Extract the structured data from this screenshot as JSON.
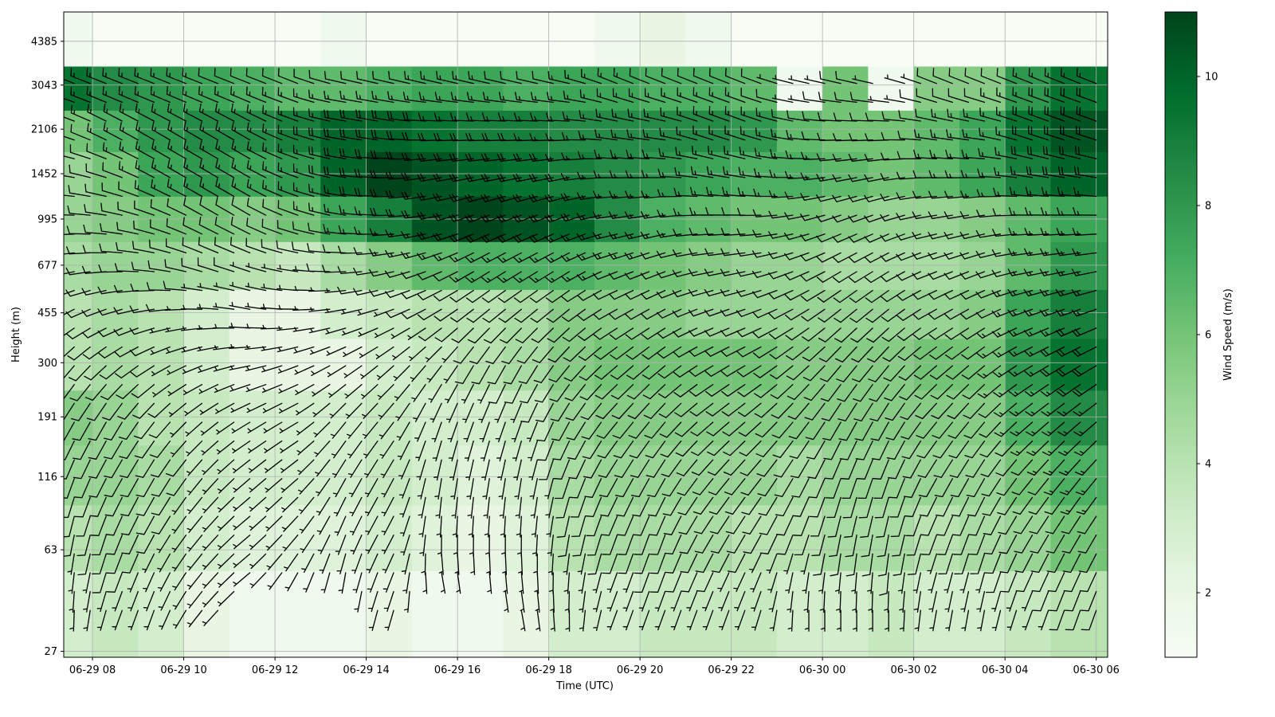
{
  "chart_data": {
    "type": "heatmap",
    "subtype": "wind-barb time-height section",
    "title": "",
    "xlabel": "Time (UTC)",
    "ylabel": "Height (m)",
    "colorbar": {
      "label": "Wind Speed (m/s)",
      "colormap": "Greens",
      "range": [
        1.0,
        11.0
      ],
      "ticks": [
        "2",
        "4",
        "6",
        "8",
        "10"
      ],
      "tick_values": [
        2,
        4,
        6,
        8,
        10
      ]
    },
    "x_ticks": [
      "06-29 08",
      "06-29 10",
      "06-29 12",
      "06-29 14",
      "06-29 16",
      "06-29 18",
      "06-29 20",
      "06-29 22",
      "06-30 00",
      "06-30 02",
      "06-30 04",
      "06-30 06"
    ],
    "x_range": [
      "06-29 07:22",
      "06-30 06:15"
    ],
    "y_ticks": [
      "27",
      "63",
      "116",
      "191",
      "300",
      "455",
      "677",
      "995",
      "1452",
      "2106",
      "3043",
      "4385"
    ],
    "y_scale": "logarithmic, height (m)",
    "grid": true,
    "time_hours": [
      7.5,
      8.5,
      9.5,
      10.5,
      11.5,
      12.5,
      13.5,
      14.5,
      15.5,
      16.5,
      17.5,
      18.5,
      19.5,
      20.5,
      21.5,
      22.5,
      23.5,
      24.5,
      25.5,
      26.5,
      27.5,
      28.5,
      29.5
    ],
    "heights_m": [
      40,
      70,
      120,
      190,
      300,
      450,
      680,
      1000,
      1450,
      2100,
      2900,
      4385
    ],
    "wind_speed": [
      [
        3.0,
        3.5,
        3.0,
        2.0,
        1.5,
        1.5,
        1.5,
        2.0,
        1.5,
        1.5,
        2.0,
        3.0,
        3.0,
        3.5,
        3.5,
        3.5,
        3.0,
        3.0,
        3.5,
        3.0,
        3.0,
        3.5,
        4.0
      ],
      [
        4.0,
        4.5,
        4.0,
        3.0,
        2.5,
        2.5,
        2.5,
        3.0,
        2.5,
        2.0,
        2.5,
        4.0,
        4.5,
        4.5,
        4.5,
        4.0,
        4.0,
        4.5,
        4.5,
        4.0,
        4.5,
        5.0,
        6.0
      ],
      [
        5.0,
        5.0,
        4.5,
        3.5,
        3.0,
        3.0,
        3.0,
        3.5,
        3.0,
        2.5,
        3.0,
        4.5,
        5.0,
        5.0,
        5.0,
        5.0,
        4.5,
        5.0,
        5.0,
        5.0,
        5.0,
        6.0,
        7.0
      ],
      [
        5.5,
        5.0,
        4.0,
        3.5,
        3.0,
        3.0,
        3.0,
        3.5,
        3.0,
        3.0,
        3.5,
        5.0,
        5.5,
        5.5,
        5.5,
        5.5,
        5.5,
        5.5,
        5.5,
        5.5,
        5.5,
        7.0,
        8.5
      ],
      [
        4.0,
        4.5,
        4.0,
        3.0,
        2.0,
        2.0,
        2.0,
        3.0,
        3.5,
        4.0,
        4.5,
        5.5,
        6.0,
        6.0,
        6.0,
        6.0,
        5.5,
        5.5,
        5.5,
        6.0,
        6.0,
        8.0,
        9.5
      ],
      [
        4.0,
        4.5,
        4.0,
        3.0,
        2.0,
        2.0,
        3.0,
        3.5,
        4.0,
        4.0,
        4.5,
        5.5,
        5.5,
        5.5,
        5.0,
        5.0,
        5.0,
        5.0,
        5.0,
        5.0,
        5.5,
        7.5,
        9.0
      ],
      [
        4.5,
        5.0,
        5.0,
        4.5,
        4.0,
        3.5,
        4.5,
        5.5,
        6.5,
        7.0,
        7.0,
        7.0,
        6.5,
        6.0,
        5.5,
        5.0,
        5.0,
        4.5,
        4.5,
        4.5,
        5.0,
        6.5,
        8.0
      ],
      [
        5.0,
        5.5,
        6.0,
        6.0,
        5.5,
        6.0,
        7.5,
        9.0,
        10.5,
        11.0,
        10.5,
        10.0,
        8.5,
        7.0,
        6.5,
        6.0,
        6.0,
        5.5,
        5.0,
        5.0,
        5.5,
        6.5,
        7.5
      ],
      [
        5.0,
        6.0,
        7.5,
        8.0,
        7.5,
        8.0,
        10.0,
        11.0,
        10.5,
        10.0,
        9.5,
        9.0,
        8.5,
        8.0,
        7.5,
        7.0,
        7.0,
        6.5,
        6.0,
        6.5,
        7.5,
        9.0,
        10.0
      ],
      [
        6.0,
        7.0,
        8.0,
        8.5,
        8.5,
        9.0,
        10.0,
        10.0,
        9.5,
        9.0,
        9.0,
        8.5,
        8.5,
        8.5,
        8.5,
        8.0,
        6.5,
        6.0,
        6.0,
        6.5,
        7.5,
        9.5,
        10.5
      ],
      [
        9.5,
        8.5,
        8.0,
        7.5,
        7.0,
        6.5,
        6.5,
        7.0,
        7.5,
        7.5,
        7.0,
        7.5,
        7.5,
        7.0,
        7.0,
        6.5,
        1.5,
        6.0,
        1.5,
        5.5,
        5.5,
        8.0,
        9.5
      ],
      [
        1.5,
        1.0,
        1.0,
        1.0,
        1.0,
        1.0,
        1.5,
        1.0,
        1.0,
        1.0,
        1.0,
        1.0,
        1.5,
        2.0,
        1.5,
        1.0,
        1.0,
        1.0,
        1.0,
        1.0,
        1.0,
        1.0,
        1.0
      ]
    ],
    "wind_from_deg": [
      [
        180,
        200,
        200,
        220,
        230,
        200,
        180,
        200,
        160,
        170,
        170,
        180,
        200,
        200,
        200,
        200,
        180,
        180,
        180,
        190,
        190,
        200,
        200
      ],
      [
        190,
        200,
        210,
        220,
        230,
        220,
        200,
        210,
        180,
        180,
        180,
        190,
        200,
        200,
        210,
        210,
        200,
        190,
        190,
        200,
        200,
        210,
        210
      ],
      [
        200,
        210,
        210,
        220,
        230,
        230,
        210,
        210,
        190,
        190,
        190,
        200,
        210,
        210,
        220,
        220,
        210,
        200,
        200,
        210,
        210,
        220,
        220
      ],
      [
        210,
        210,
        220,
        230,
        240,
        240,
        220,
        220,
        200,
        200,
        200,
        210,
        220,
        220,
        230,
        230,
        220,
        210,
        210,
        220,
        220,
        230,
        230
      ],
      [
        220,
        230,
        240,
        250,
        260,
        250,
        240,
        230,
        220,
        210,
        210,
        220,
        230,
        230,
        240,
        240,
        230,
        220,
        220,
        230,
        230,
        240,
        240
      ],
      [
        240,
        250,
        260,
        270,
        280,
        270,
        260,
        250,
        240,
        230,
        230,
        230,
        240,
        240,
        250,
        250,
        240,
        230,
        230,
        240,
        240,
        250,
        250
      ],
      [
        260,
        270,
        280,
        290,
        290,
        280,
        270,
        260,
        250,
        240,
        240,
        240,
        250,
        250,
        260,
        260,
        250,
        240,
        240,
        250,
        250,
        260,
        260
      ],
      [
        270,
        280,
        290,
        300,
        300,
        290,
        280,
        270,
        260,
        250,
        250,
        250,
        260,
        260,
        270,
        270,
        260,
        250,
        250,
        260,
        260,
        270,
        270
      ],
      [
        280,
        290,
        300,
        300,
        300,
        290,
        280,
        270,
        260,
        260,
        260,
        260,
        270,
        270,
        280,
        280,
        270,
        260,
        260,
        270,
        270,
        280,
        280
      ],
      [
        290,
        300,
        300,
        300,
        300,
        290,
        280,
        280,
        270,
        270,
        270,
        270,
        280,
        280,
        290,
        290,
        280,
        270,
        270,
        280,
        280,
        290,
        290
      ],
      [
        290,
        290,
        290,
        290,
        290,
        290,
        280,
        280,
        280,
        280,
        280,
        280,
        290,
        290,
        290,
        290,
        280,
        280,
        280,
        290,
        290,
        290,
        290
      ],
      [
        300,
        300,
        300,
        300,
        300,
        300,
        300,
        300,
        300,
        300,
        300,
        300,
        300,
        300,
        300,
        300,
        300,
        300,
        300,
        300,
        300,
        300,
        300
      ]
    ]
  }
}
